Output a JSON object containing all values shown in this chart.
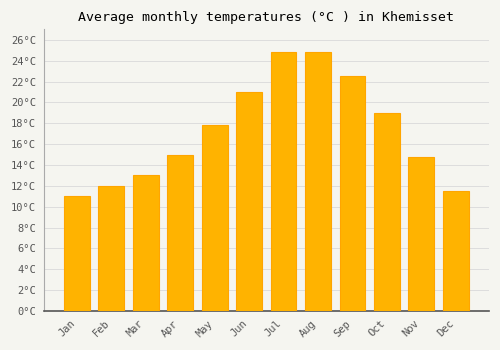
{
  "title": "Average monthly temperatures (°C ) in Khemisset",
  "months": [
    "Jan",
    "Feb",
    "Mar",
    "Apr",
    "May",
    "Jun",
    "Jul",
    "Aug",
    "Sep",
    "Oct",
    "Nov",
    "Dec"
  ],
  "temperatures": [
    11,
    12,
    13,
    15,
    17.8,
    21,
    24.8,
    24.8,
    22.5,
    19,
    14.8,
    11.5
  ],
  "bar_color": "#FFB300",
  "bar_edge_color": "#FFA500",
  "background_color": "#F5F5F0",
  "grid_color": "#DDDDDD",
  "ylim": [
    0,
    27
  ],
  "yticks": [
    0,
    2,
    4,
    6,
    8,
    10,
    12,
    14,
    16,
    18,
    20,
    22,
    24,
    26
  ],
  "ytick_labels": [
    "0°C",
    "2°C",
    "4°C",
    "6°C",
    "8°C",
    "10°C",
    "12°C",
    "14°C",
    "16°C",
    "18°C",
    "20°C",
    "22°C",
    "24°C",
    "26°C"
  ],
  "title_fontsize": 9.5,
  "tick_fontsize": 7.5,
  "bar_width": 0.75
}
